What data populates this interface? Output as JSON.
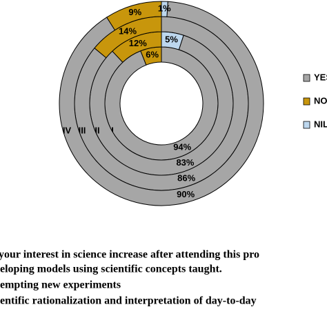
{
  "chart_data": {
    "type": "multi-donut",
    "categories": [
      "I",
      "II",
      "III",
      "IV"
    ],
    "series": [
      {
        "name": "YES",
        "color": "#a6a6a6",
        "values": [
          94,
          83,
          86,
          90
        ],
        "value_labels": [
          "94%",
          "83%",
          "86%",
          "90%"
        ]
      },
      {
        "name": "NO",
        "color": "#c8960c",
        "values": [
          6,
          12,
          14,
          9
        ],
        "value_labels": [
          "6%",
          "12%",
          "14%",
          "9%"
        ]
      },
      {
        "name": "NIL",
        "color": "#bdd7ee",
        "values": [
          null,
          5,
          null,
          1
        ],
        "value_labels": [
          null,
          "5%",
          null,
          "1%"
        ]
      }
    ],
    "notes": [
      "your interest in science increase after attending this pro",
      "eloping models using scientific concepts taught.",
      "empting new experiments",
      "entific rationalization and interpretation of  day-to-day"
    ]
  }
}
